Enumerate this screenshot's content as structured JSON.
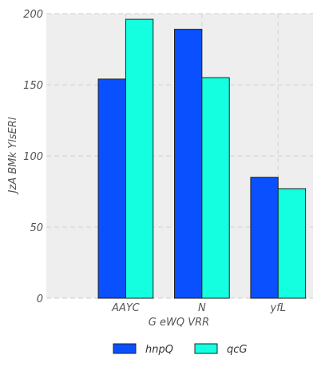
{
  "chart_data": {
    "type": "bar",
    "categories": [
      "AAYC",
      "N",
      "yfL"
    ],
    "series": [
      {
        "name": "hnpQ",
        "values": [
          154,
          189,
          85
        ],
        "color": "#0a50ff"
      },
      {
        "name": "qcG",
        "values": [
          196,
          155,
          77
        ],
        "color": "#14ffe0"
      }
    ],
    "xlabel": "G eWQ VRR",
    "ylabel": "JzA BMk YlsERl",
    "ylim": [
      0,
      200
    ],
    "yticks": [
      0,
      50,
      100,
      150,
      200
    ],
    "grid": true,
    "legend_position": "bottom-center"
  }
}
